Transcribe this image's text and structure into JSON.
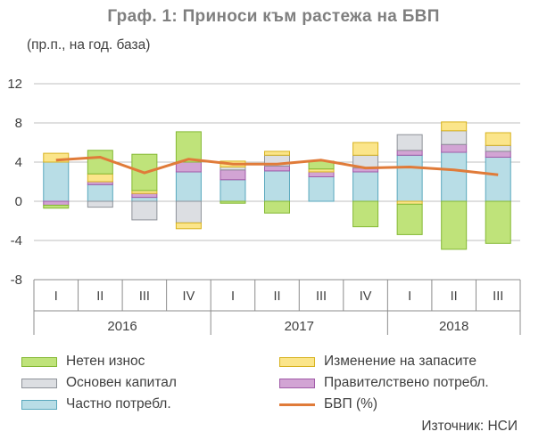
{
  "chart_data": {
    "type": "bar",
    "stacked": true,
    "title": "Граф. 1: Приноси към растежа на БВП",
    "subtitle": "(пр.п., на год. база)",
    "source": "Източник: НСИ",
    "ylim": [
      -8,
      12
    ],
    "yticks": [
      "12",
      "8",
      "4",
      "0",
      "-4",
      "-8"
    ],
    "ytick_values": [
      12,
      8,
      4,
      0,
      -4,
      -8
    ],
    "categories": [
      "I",
      "II",
      "III",
      "IV",
      "I",
      "II",
      "III",
      "IV",
      "I",
      "II",
      "III"
    ],
    "years": [
      {
        "label": "2016",
        "count": 4
      },
      {
        "label": "2017",
        "count": 4
      },
      {
        "label": "2018",
        "count": 3
      }
    ],
    "series": [
      {
        "name": "Частно потребл.",
        "color": "#b8dde6",
        "stroke": "#5aa8bd",
        "values": [
          4.0,
          1.7,
          0.4,
          3.0,
          2.2,
          3.1,
          2.5,
          3.0,
          4.7,
          5.0,
          4.5
        ]
      },
      {
        "name": "Правителствено потребл.",
        "color": "#d2a4d4",
        "stroke": "#a05aa8",
        "values": [
          -0.4,
          0.3,
          0.4,
          1.0,
          1.0,
          0.5,
          0.5,
          0.4,
          0.5,
          0.8,
          0.6
        ]
      },
      {
        "name": "Основен капитал",
        "color": "#dcdee2",
        "stroke": "#8e9299",
        "values": [
          0.0,
          -0.6,
          -1.9,
          -2.2,
          0.3,
          1.1,
          0.0,
          1.3,
          1.6,
          1.4,
          0.6
        ]
      },
      {
        "name": "Изменение на запасите",
        "color": "#fbe58a",
        "stroke": "#d7b21f",
        "values": [
          0.9,
          0.8,
          0.3,
          -0.6,
          0.6,
          0.4,
          0.3,
          1.3,
          -0.3,
          0.9,
          1.3
        ]
      },
      {
        "name": "Нетен износ",
        "color": "#bfe37a",
        "stroke": "#84b834",
        "values": [
          -0.3,
          2.4,
          3.7,
          3.1,
          -0.2,
          -1.2,
          0.8,
          -2.6,
          -3.1,
          -4.9,
          -4.3
        ]
      }
    ],
    "line": {
      "name": "БВП (%)",
      "color": "#e07b39",
      "values": [
        4.2,
        4.5,
        2.9,
        4.3,
        3.8,
        3.8,
        4.2,
        3.4,
        3.5,
        3.2,
        2.7
      ]
    },
    "legend": [
      {
        "name": "Нетен износ",
        "kind": "box",
        "color": "#bfe37a",
        "stroke": "#84b834"
      },
      {
        "name": "Изменение на запасите",
        "kind": "box",
        "color": "#fbe58a",
        "stroke": "#d7b21f"
      },
      {
        "name": "Основен капитал",
        "kind": "box",
        "color": "#dcdee2",
        "stroke": "#8e9299"
      },
      {
        "name": "Правителствено потребл.",
        "kind": "box",
        "color": "#d2a4d4",
        "stroke": "#a05aa8"
      },
      {
        "name": "Частно потребл.",
        "kind": "box",
        "color": "#b8dde6",
        "stroke": "#5aa8bd"
      },
      {
        "name": "БВП (%)",
        "kind": "line",
        "color": "#e07b39"
      }
    ],
    "grid": true
  }
}
